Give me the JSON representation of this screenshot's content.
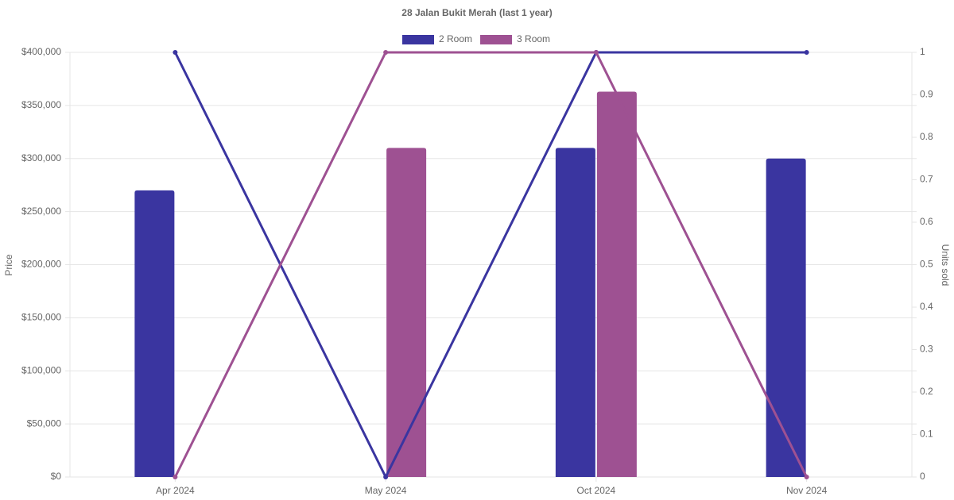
{
  "chart_data": {
    "type": "bar-line",
    "title": "28 Jalan Bukit Merah (last 1 year)",
    "y_label": "Price",
    "y2_label": "Units sold",
    "categories": [
      "Apr 2024",
      "May 2024",
      "Oct 2024",
      "Nov 2024"
    ],
    "series": [
      {
        "name": "2 Room",
        "color": "#3a35a0",
        "values": [
          270000,
          null,
          310000,
          300000
        ],
        "units": [
          1,
          0,
          1,
          1
        ]
      },
      {
        "name": "3 Room",
        "color": "#9e5192",
        "values": [
          null,
          310000,
          363000,
          null
        ],
        "units": [
          0,
          1,
          1,
          0
        ]
      }
    ],
    "ylim": [
      0,
      400000
    ],
    "yticks": [
      {
        "value": 0,
        "label": "$0"
      },
      {
        "value": 50000,
        "label": "$50,000"
      },
      {
        "value": 100000,
        "label": "$100,000"
      },
      {
        "value": 150000,
        "label": "$150,000"
      },
      {
        "value": 200000,
        "label": "$200,000"
      },
      {
        "value": 250000,
        "label": "$250,000"
      },
      {
        "value": 300000,
        "label": "$300,000"
      },
      {
        "value": 350000,
        "label": "$350,000"
      },
      {
        "value": 400000,
        "label": "$400,000"
      }
    ],
    "y2lim": [
      0,
      1
    ],
    "y2ticks": [
      0,
      0.1,
      0.2,
      0.3,
      0.4,
      0.5,
      0.6,
      0.7,
      0.8,
      0.9,
      1
    ],
    "grid": true
  }
}
